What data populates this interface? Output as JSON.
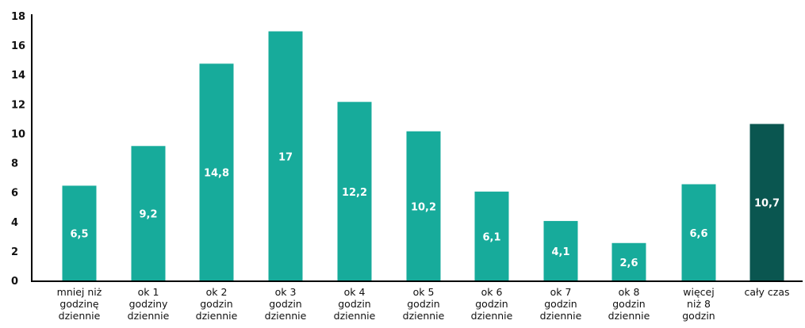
{
  "chart_data": {
    "type": "bar",
    "title": "",
    "xlabel": "",
    "ylabel": "",
    "ylim": [
      0,
      18
    ],
    "yticks": [
      0,
      2,
      4,
      6,
      8,
      10,
      12,
      14,
      16,
      18
    ],
    "ytick_labels": [
      "0",
      "2",
      "4",
      "6",
      "8",
      "10",
      "12",
      "14",
      "16",
      "18"
    ],
    "grid": false,
    "categories": [
      [
        "mniej niż",
        "godzinę",
        "dziennie"
      ],
      [
        "ok 1",
        "godziny",
        "dziennie"
      ],
      [
        "ok 2",
        "godzin",
        "dziennie"
      ],
      [
        "ok 3",
        "godzin",
        "dziennie"
      ],
      [
        "ok 4",
        "godzin",
        "dziennie"
      ],
      [
        "ok 5",
        "godzin",
        "dziennie"
      ],
      [
        "ok 6",
        "godzin",
        "dziennie"
      ],
      [
        "ok 7",
        "godzin",
        "dziennie"
      ],
      [
        "ok 8",
        "godzin",
        "dziennie"
      ],
      [
        "więcej",
        "niż 8",
        "godzin"
      ],
      [
        "cały czas"
      ]
    ],
    "values": [
      6.5,
      9.2,
      14.8,
      17,
      12.2,
      10.2,
      6.1,
      4.1,
      2.6,
      6.6,
      10.7
    ],
    "value_labels": [
      "6,5",
      "9,2",
      "14,8",
      "17",
      "12,2",
      "10,2",
      "6,1",
      "4,1",
      "2,6",
      "6,6",
      "10,7"
    ],
    "colors": {
      "bar": "#17ab9b",
      "highlight": "#0a5650",
      "highlight_index": 10
    }
  }
}
